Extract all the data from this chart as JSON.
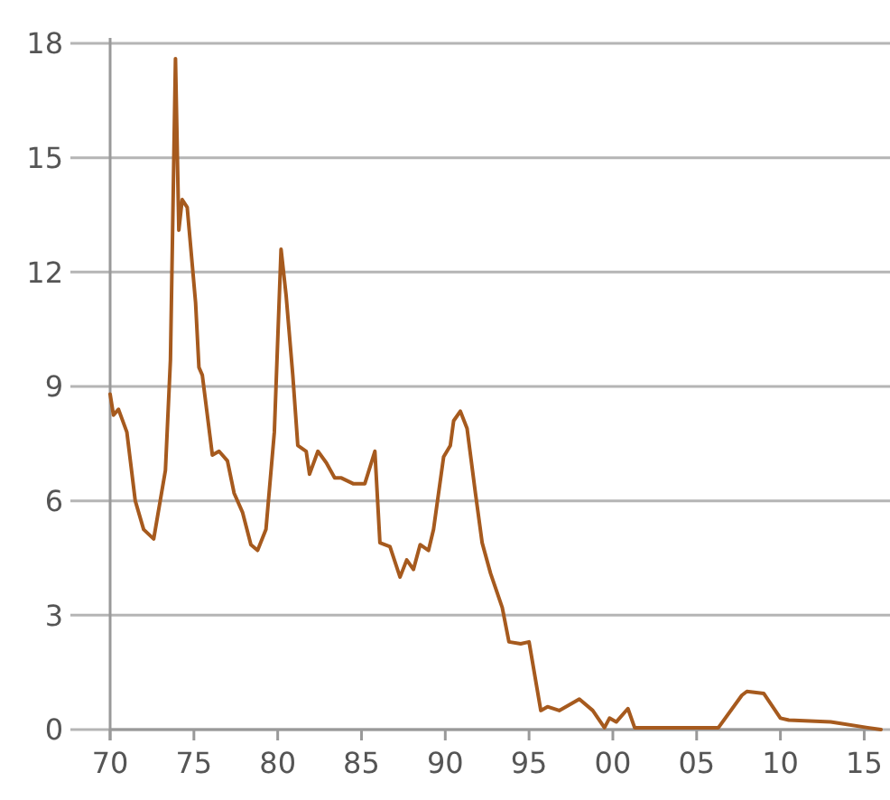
{
  "chart_data": {
    "type": "line",
    "x": [
      1970.0,
      1970.2,
      1970.5,
      1971.0,
      1971.5,
      1972.0,
      1972.6,
      1973.3,
      1973.6,
      1973.9,
      1974.1,
      1974.3,
      1974.6,
      1975.1,
      1975.3,
      1975.5,
      1976.1,
      1976.5,
      1977.0,
      1977.4,
      1977.9,
      1978.4,
      1978.8,
      1979.3,
      1979.8,
      1980.2,
      1980.5,
      1980.9,
      1981.2,
      1981.7,
      1981.9,
      1982.4,
      1982.9,
      1983.4,
      1983.8,
      1984.5,
      1985.2,
      1985.8,
      1986.1,
      1986.7,
      1987.3,
      1987.7,
      1988.1,
      1988.5,
      1989.0,
      1989.3,
      1989.9,
      1990.3,
      1990.5,
      1990.9,
      1991.3,
      1991.8,
      1992.2,
      1992.7,
      1993.4,
      1993.8,
      1994.5,
      1995.0,
      1995.7,
      1996.1,
      1996.8,
      1998.0,
      1998.8,
      1999.5,
      1999.8,
      2000.2,
      2000.9,
      2001.3,
      2006.3,
      2007.7,
      2008.0,
      2009.0,
      2010.0,
      2010.5,
      2013.0,
      2015.2,
      2016.0
    ],
    "series": [
      {
        "color": "#a65a1e",
        "values": [
          8.8,
          8.25,
          8.4,
          7.8,
          6.0,
          5.25,
          5.0,
          6.8,
          9.7,
          17.6,
          13.1,
          13.9,
          13.7,
          11.2,
          9.5,
          9.3,
          7.2,
          7.3,
          7.05,
          6.2,
          5.7,
          4.85,
          4.7,
          5.25,
          7.8,
          12.6,
          11.4,
          9.3,
          7.45,
          7.3,
          6.7,
          7.3,
          7.0,
          6.6,
          6.6,
          6.45,
          6.45,
          7.3,
          4.9,
          4.8,
          4.0,
          4.45,
          4.2,
          4.85,
          4.7,
          5.25,
          7.15,
          7.45,
          8.1,
          8.35,
          7.9,
          6.2,
          4.9,
          4.1,
          3.2,
          2.3,
          2.25,
          2.3,
          0.5,
          0.6,
          0.5,
          0.8,
          0.5,
          0.05,
          0.3,
          0.2,
          0.55,
          0.05,
          0.05,
          0.9,
          1.0,
          0.95,
          0.3,
          0.25,
          0.2,
          0.05,
          0.0
        ]
      }
    ],
    "xlim": [
      1970,
      2016
    ],
    "xticks": [
      {
        "value": 1970,
        "label": "70"
      },
      {
        "value": 1975,
        "label": "75"
      },
      {
        "value": 1980,
        "label": "80"
      },
      {
        "value": 1985,
        "label": "85"
      },
      {
        "value": 1990,
        "label": "90"
      },
      {
        "value": 1995,
        "label": "95"
      },
      {
        "value": 2000,
        "label": "00"
      },
      {
        "value": 2005,
        "label": "05"
      },
      {
        "value": 2010,
        "label": "10"
      },
      {
        "value": 2015,
        "label": "15"
      }
    ],
    "ylim": [
      0,
      18
    ],
    "yticks": [
      0,
      3,
      6,
      9,
      12,
      15,
      18
    ],
    "grid": "y"
  }
}
